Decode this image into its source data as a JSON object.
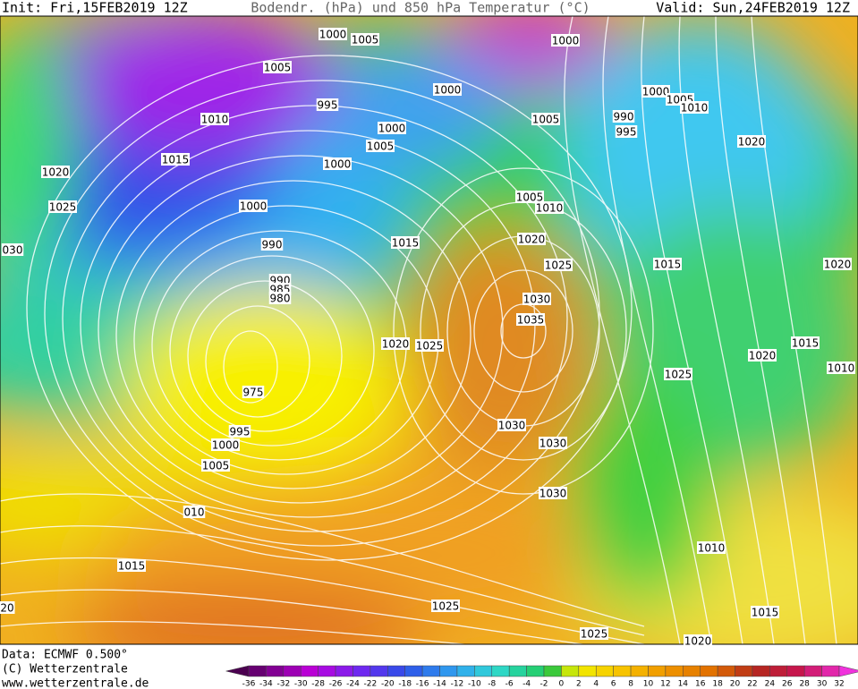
{
  "header": {
    "init": "Init: Fri,15FEB2019 12Z",
    "title": "Bodendr. (hPa) und 850 hPa Temperatur (°C)",
    "valid": "Valid: Sun,24FEB2019 12Z"
  },
  "map": {
    "isobar_labels": [
      "1000",
      "1005",
      "1005",
      "1000",
      "1000",
      "995",
      "1010",
      "1005",
      "1000",
      "1005",
      "1010",
      "990",
      "995",
      "1000",
      "1005",
      "1015",
      "1000",
      "1020",
      "1020",
      "1025",
      "1000",
      "1005",
      "1010",
      "990",
      "1015",
      "1020",
      "030",
      "1025",
      "1015",
      "1020",
      "990",
      "985",
      "980",
      "1030",
      "1035",
      "1020",
      "1025",
      "1015",
      "1020",
      "1010",
      "1025",
      "975",
      "995",
      "1030",
      "1030",
      "1000",
      "1005",
      "1030",
      "010",
      "1010",
      "1015",
      "1025",
      "1015",
      "1025",
      "1020",
      "20"
    ]
  },
  "footer": {
    "data": "Data: ECMWF  0.500°",
    "copyright": "(C) Wetterzentrale",
    "url": "www.wetterzentrale.de"
  },
  "scale": {
    "ticks": [
      -36,
      -34,
      -32,
      -30,
      -28,
      -26,
      -24,
      -22,
      -20,
      -18,
      -16,
      -14,
      -12,
      -10,
      -8,
      -6,
      -4,
      -2,
      0,
      2,
      4,
      6,
      8,
      10,
      12,
      14,
      16,
      18,
      20,
      22,
      24,
      26,
      28,
      30,
      32
    ]
  }
}
